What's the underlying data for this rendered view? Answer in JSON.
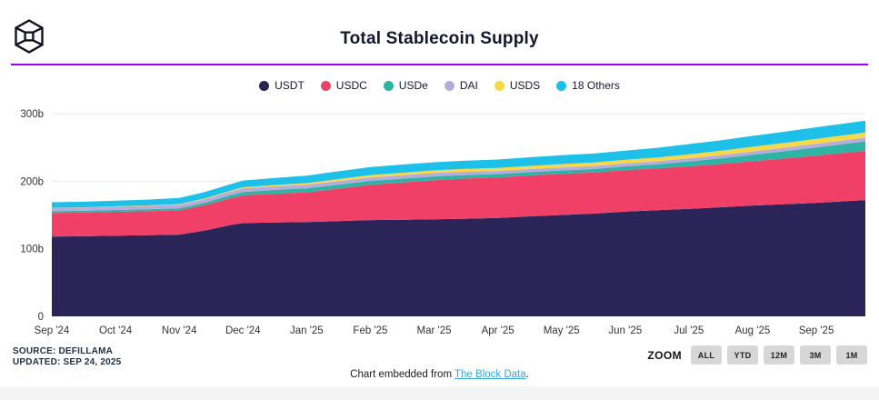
{
  "header": {
    "title": "Total Stablecoin Supply"
  },
  "colors": {
    "accent_line": "#a100f1",
    "grid": "#e7e7e7",
    "axis_text": "#333333",
    "link": "#38a8da",
    "button_bg": "#d7d7d7",
    "footer_strip": "#f4f4f4"
  },
  "chart_data": {
    "type": "stacked_area",
    "title": "Total Stablecoin Supply",
    "unit": "USD billions",
    "ylim": [
      0,
      300
    ],
    "grid": "horizontal",
    "legend_position": "top-center",
    "y_ticks": [
      {
        "value": 0,
        "label": "0"
      },
      {
        "value": 100,
        "label": "100b"
      },
      {
        "value": 200,
        "label": "200b"
      },
      {
        "value": 300,
        "label": "300b"
      }
    ],
    "x_tick_labels": [
      "Sep '24",
      "Oct '24",
      "Nov '24",
      "Dec '24",
      "Jan '25",
      "Feb '25",
      "Mar '25",
      "Apr '25",
      "May '25",
      "Jun '25",
      "Jul '25",
      "Aug '25",
      "Sep '25"
    ],
    "x_months": [
      0,
      0.5,
      1,
      1.5,
      2,
      2.4,
      2.8,
      3,
      3.5,
      4,
      4.5,
      5,
      5.5,
      6,
      6.5,
      7,
      7.5,
      8,
      8.5,
      9,
      9.5,
      10,
      10.5,
      11,
      11.5,
      12,
      12.77
    ],
    "x_end_month": 12.77,
    "series": [
      {
        "name": "USDT",
        "color": "#2b2459",
        "values": [
          118,
          118.5,
          119.5,
          120,
          121,
          127,
          135,
          138,
          139,
          139.5,
          141,
          142.5,
          143,
          143.5,
          144.5,
          145.5,
          148,
          150,
          152,
          155,
          157,
          159,
          161.5,
          164,
          166,
          168,
          172
        ]
      },
      {
        "name": "USDC",
        "color": "#f04067",
        "values": [
          35,
          35,
          35.2,
          35.5,
          36,
          37.5,
          39.5,
          41,
          42.5,
          44,
          48,
          52,
          55,
          58,
          59.5,
          60,
          60.5,
          61,
          61,
          61.5,
          62,
          63,
          64,
          65.5,
          67.5,
          70,
          73
        ]
      },
      {
        "name": "USDe",
        "color": "#2fb3a4",
        "values": [
          2.6,
          2.7,
          2.7,
          2.8,
          3,
          3.6,
          4.5,
          5,
          5.6,
          5.9,
          6,
          5.9,
          5.7,
          5.5,
          5.2,
          5,
          4.9,
          4.9,
          5,
          5.3,
          6,
          7.3,
          8.2,
          9.5,
          10.8,
          12,
          14
        ]
      },
      {
        "name": "DAI",
        "color": "#b5abdd",
        "values": [
          5,
          5,
          5,
          5.1,
          5.2,
          5.3,
          5.4,
          5.4,
          5.3,
          5.3,
          5.2,
          5.2,
          5.1,
          5,
          4.8,
          4.6,
          4.5,
          4.5,
          4.5,
          4.5,
          4.5,
          4.6,
          4.8,
          5,
          5.2,
          5.3,
          5.3
        ]
      },
      {
        "name": "USDS",
        "color": "#f6d84a",
        "values": [
          0.2,
          0.3,
          0.5,
          0.7,
          1,
          1.2,
          1.4,
          1.6,
          2,
          2.5,
          3,
          3.4,
          3.8,
          4,
          4.3,
          4.5,
          4.8,
          5,
          5.2,
          5.5,
          5.7,
          6,
          6.5,
          7,
          7.2,
          7.5,
          7.8
        ]
      },
      {
        "name": "18 Others",
        "color": "#1cc0e8",
        "values": [
          8,
          8.2,
          8.4,
          8.6,
          9,
          9.3,
          9.7,
          10,
          10.5,
          11,
          11.5,
          12,
          12,
          12,
          12.2,
          12.5,
          12.7,
          13,
          13.2,
          13.5,
          14.2,
          15,
          15.5,
          16,
          16.5,
          17,
          17.5
        ]
      }
    ]
  },
  "source_block": {
    "source": "SOURCE: DEFILLAMA",
    "updated": "UPDATED: SEP 24, 2025"
  },
  "zoom_control": {
    "label": "ZOOM",
    "buttons": [
      "ALL",
      "YTD",
      "12M",
      "3M",
      "1M"
    ]
  },
  "footer": {
    "prefix": "Chart embedded from ",
    "link_text": "The Block Data",
    "suffix": "."
  }
}
